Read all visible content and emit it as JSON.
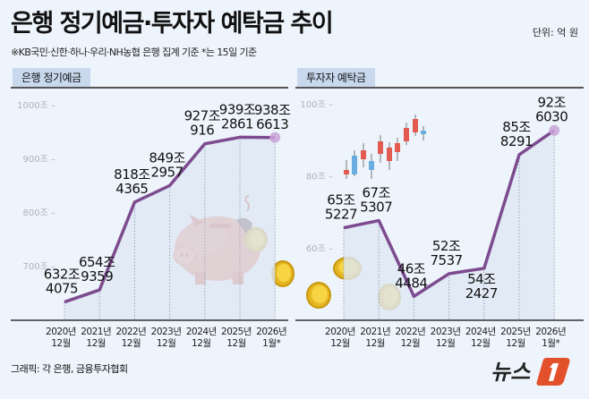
{
  "header": {
    "title": "은행 정기예금·투자자 예탁금 추이",
    "unit": "단위: 억 원",
    "note": "※KB국민·신한·하나·우리·NH농협 은행 집계 기준 *는 15일 기준"
  },
  "footer": {
    "source": "그래픽: 각 은행, 금융투자협회",
    "logo": "뉴스1"
  },
  "colors": {
    "line": "#7d4b8f",
    "area": "#dde7f4",
    "tab": "#c8d9ee",
    "background": "#eef4fb"
  },
  "chart_data": [
    {
      "type": "line",
      "title": "은행 정기예금",
      "categories": [
        [
          "2020년",
          "12월"
        ],
        [
          "2021년",
          "12월"
        ],
        [
          "2022년",
          "12월"
        ],
        [
          "2023년",
          "12월"
        ],
        [
          "2024년",
          "12월"
        ],
        [
          "2025년",
          "12월"
        ],
        [
          "2026년",
          "1월*"
        ]
      ],
      "values": [
        632.4075,
        654.9359,
        818.4365,
        849.2957,
        927.0916,
        939.2861,
        938.6613
      ],
      "labels": [
        [
          "632조",
          "4075"
        ],
        [
          "654조",
          "9359"
        ],
        [
          "818조",
          "4365"
        ],
        [
          "849조",
          "2957"
        ],
        [
          "927조",
          "916"
        ],
        [
          "939조",
          "2861"
        ],
        [
          "938조",
          "6613"
        ]
      ],
      "yticks": [
        {
          "v": 700,
          "t": "700조"
        },
        {
          "v": 800,
          "t": "800조"
        },
        {
          "v": 900,
          "t": "900조"
        },
        {
          "v": 1000,
          "t": "1000조"
        }
      ],
      "ylim": [
        600,
        1000
      ]
    },
    {
      "type": "line",
      "title": "투자자 예탁금",
      "categories": [
        [
          "2020년",
          "12월"
        ],
        [
          "2021년",
          "12월"
        ],
        [
          "2022년",
          "12월"
        ],
        [
          "2023년",
          "12월"
        ],
        [
          "2024년",
          "12월"
        ],
        [
          "2025년",
          "12월"
        ],
        [
          "2026년",
          "1월*"
        ]
      ],
      "values": [
        65.5227,
        67.5307,
        46.4484,
        52.7537,
        54.2427,
        85.8291,
        92.603
      ],
      "labels": [
        [
          "65조",
          "5227"
        ],
        [
          "67조",
          "5307"
        ],
        [
          "46조",
          "4484"
        ],
        [
          "52조",
          "7537"
        ],
        [
          "54조",
          "2427"
        ],
        [
          "85조",
          "8291"
        ],
        [
          "92조",
          "6030"
        ]
      ],
      "yticks": [
        {
          "v": 60,
          "t": "60조"
        },
        {
          "v": 80,
          "t": "80조"
        },
        {
          "v": 100,
          "t": "100조"
        }
      ],
      "ylim": [
        40,
        100
      ]
    }
  ]
}
